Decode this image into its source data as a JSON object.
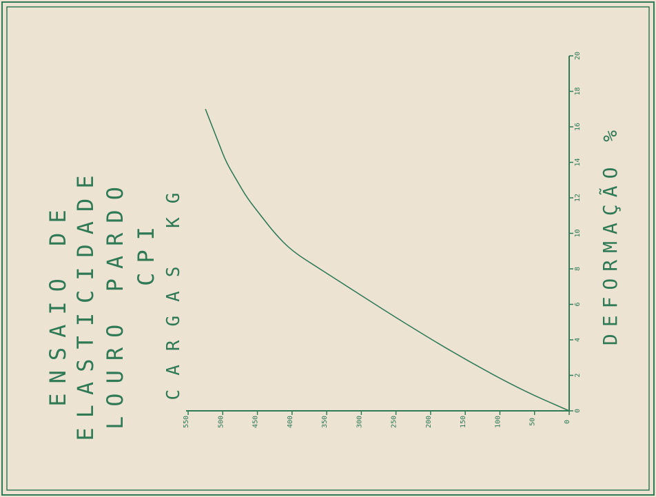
{
  "chart_data": {
    "type": "line",
    "title_lines": [
      "ENSAIO DE",
      "ELASTICIDADE",
      "LOURO PARDO",
      "CPI"
    ],
    "xlabel": "DEFORMAÇÃO %",
    "ylabel": "CARGAS KG",
    "x_ticks": [
      "0",
      "2",
      "4",
      "6",
      "8",
      "10",
      "12",
      "14",
      "16",
      "18",
      "20"
    ],
    "y_ticks": [
      "0",
      "50",
      "100",
      "150",
      "200",
      "250",
      "300",
      "350",
      "400",
      "450",
      "500",
      "550"
    ],
    "xlim": [
      0,
      20
    ],
    "ylim": [
      0,
      550
    ],
    "series": [
      {
        "x": [
          0,
          1.2,
          3,
          5,
          7,
          8,
          9,
          10,
          11,
          12,
          13,
          14,
          15,
          16,
          17
        ],
        "y": [
          0,
          70,
          155,
          240,
          320,
          360,
          400,
          425,
          445,
          465,
          480,
          495,
          505,
          515,
          525
        ]
      }
    ],
    "colors": {
      "ink": "#2f7a55",
      "paper": "#ece3d3"
    }
  }
}
